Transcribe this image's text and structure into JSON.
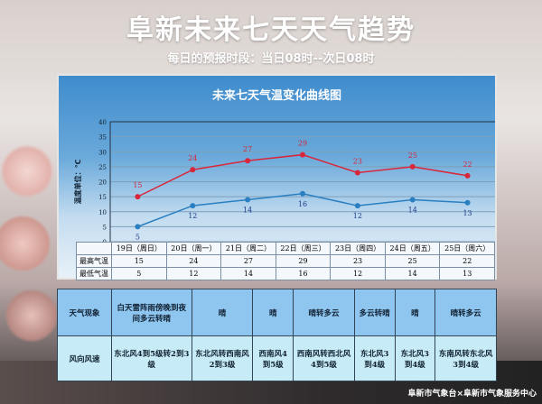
{
  "header": {
    "title": "阜新未来七天天气趋势",
    "subtitle": "每日的预报时段：当日08时--次日08时"
  },
  "chart_data": {
    "type": "line",
    "title": "未来七天气温变化曲线图",
    "ylabel": "温度单位：℃",
    "ylim": [
      0,
      40
    ],
    "yticks": [
      "0",
      "5",
      "10",
      "15",
      "20",
      "25",
      "30",
      "35",
      "40"
    ],
    "categories": [
      "19日（周日）",
      "20日（周一）",
      "21日（周二）",
      "22日（周三）",
      "23日（周四）",
      "24日（周五）",
      "25日（周六）"
    ],
    "series": [
      {
        "name": "最高气温",
        "values": [
          15,
          24,
          27,
          29,
          23,
          25,
          22
        ],
        "color": "#d9263a"
      },
      {
        "name": "最低气温",
        "values": [
          5,
          12,
          14,
          16,
          12,
          14,
          13
        ],
        "color": "#2a7fc0"
      }
    ],
    "grid": true
  },
  "weather": {
    "row_labels": [
      "天气现象",
      "风向风速"
    ],
    "conditions": [
      "白天雷阵雨傍晚到夜间多云转晴",
      "晴",
      "晴",
      "晴转多云",
      "多云转晴",
      "晴",
      "晴转多云"
    ],
    "winds": [
      "东北风4到5级转2到3级",
      "东北风转西南风2到3级",
      "西南风4到5级",
      "西南风转西北风4到5级",
      "东北风3到4级",
      "东北风3到4级",
      "东南风转东北风3到4级"
    ]
  },
  "footer": "阜新市气象台×阜新市气象服务中心"
}
